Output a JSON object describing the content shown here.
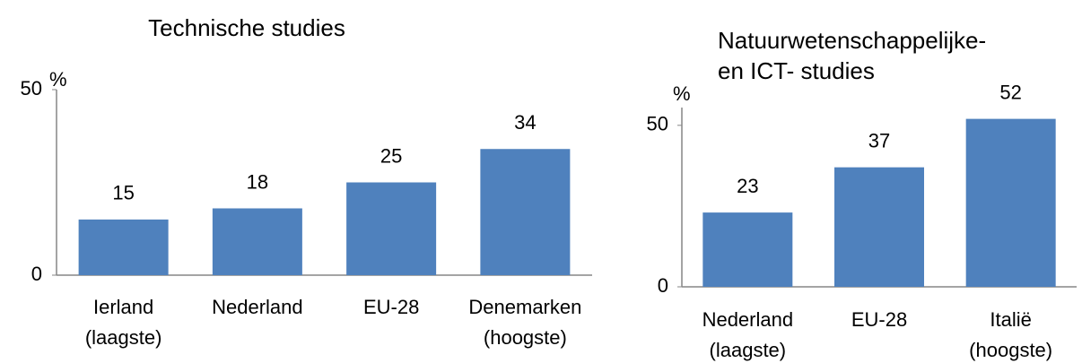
{
  "chart_data": [
    {
      "type": "bar",
      "title": "Technische studies",
      "y_label": "%",
      "categories": [
        "Ierland\n(laagste)",
        "Nederland",
        "EU-28",
        "Denemarken\n(hoogste)"
      ],
      "values": [
        15,
        18,
        25,
        34
      ],
      "color": "#4f81bd",
      "ylim": [
        0,
        50
      ],
      "yticks": [
        0,
        50
      ]
    },
    {
      "type": "bar",
      "title": "Natuurwetenschappelijke-\nen ICT- studies",
      "y_label": "%",
      "categories": [
        "Nederland\n(laagste)",
        "EU-28",
        "Italië\n(hoogste)"
      ],
      "values": [
        23,
        37,
        52
      ],
      "color": "#4f81bd",
      "ylim": [
        0,
        55.5
      ],
      "yticks": [
        0,
        50
      ]
    }
  ]
}
